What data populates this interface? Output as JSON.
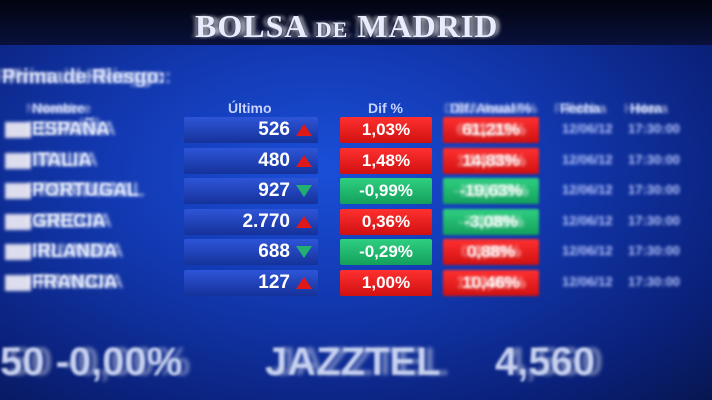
{
  "board": {
    "title_main1": "BOLSA",
    "title_de": "DE",
    "title_main2": "MADRID",
    "subtitle": "Prima de Riesgo:"
  },
  "headers": {
    "name": "Nombre",
    "last": "Último",
    "dif": "Dif %",
    "dif_annual": "Dif. Anual %",
    "col5": "Fecha",
    "col6": "Hora"
  },
  "rows": [
    {
      "name": "ESPAÑA",
      "last": "526",
      "trend": "up",
      "dif": "1,03%",
      "dif_color": "red",
      "annual": "61,21%",
      "annual_color": "red",
      "col5": "12/06/12",
      "col6": "17:30:00"
    },
    {
      "name": "ITALIA",
      "last": "480",
      "trend": "up",
      "dif": "1,48%",
      "dif_color": "red",
      "annual": "14,83%",
      "annual_color": "red",
      "col5": "12/06/12",
      "col6": "17:30:00"
    },
    {
      "name": "PORTUGAL",
      "last": "927",
      "trend": "down",
      "dif": "-0,99%",
      "dif_color": "green",
      "annual": "-19,63%",
      "annual_color": "green",
      "col5": "12/06/12",
      "col6": "17:30:00"
    },
    {
      "name": "GRECIA",
      "last": "2.770",
      "trend": "up",
      "dif": "0,36%",
      "dif_color": "red",
      "annual": "-3,08%",
      "annual_color": "green",
      "col5": "12/06/12",
      "col6": "17:30:00"
    },
    {
      "name": "IRLANDA",
      "last": "688",
      "trend": "down",
      "dif": "-0,29%",
      "dif_color": "green",
      "annual": "0,88%",
      "annual_color": "red",
      "col5": "12/06/12",
      "col6": "17:30:00"
    },
    {
      "name": "FRANCIA",
      "last": "127",
      "trend": "up",
      "dif": "1,00%",
      "dif_color": "red",
      "annual": "10,46%",
      "annual_color": "red",
      "col5": "12/06/12",
      "col6": "17:30:00"
    }
  ],
  "ticker": {
    "left": "50 -0,00%",
    "company": "JAZZTEL",
    "price": "4,560"
  },
  "colors": {
    "up": "#e01818",
    "down": "#22b070",
    "board": "#1238b0"
  }
}
